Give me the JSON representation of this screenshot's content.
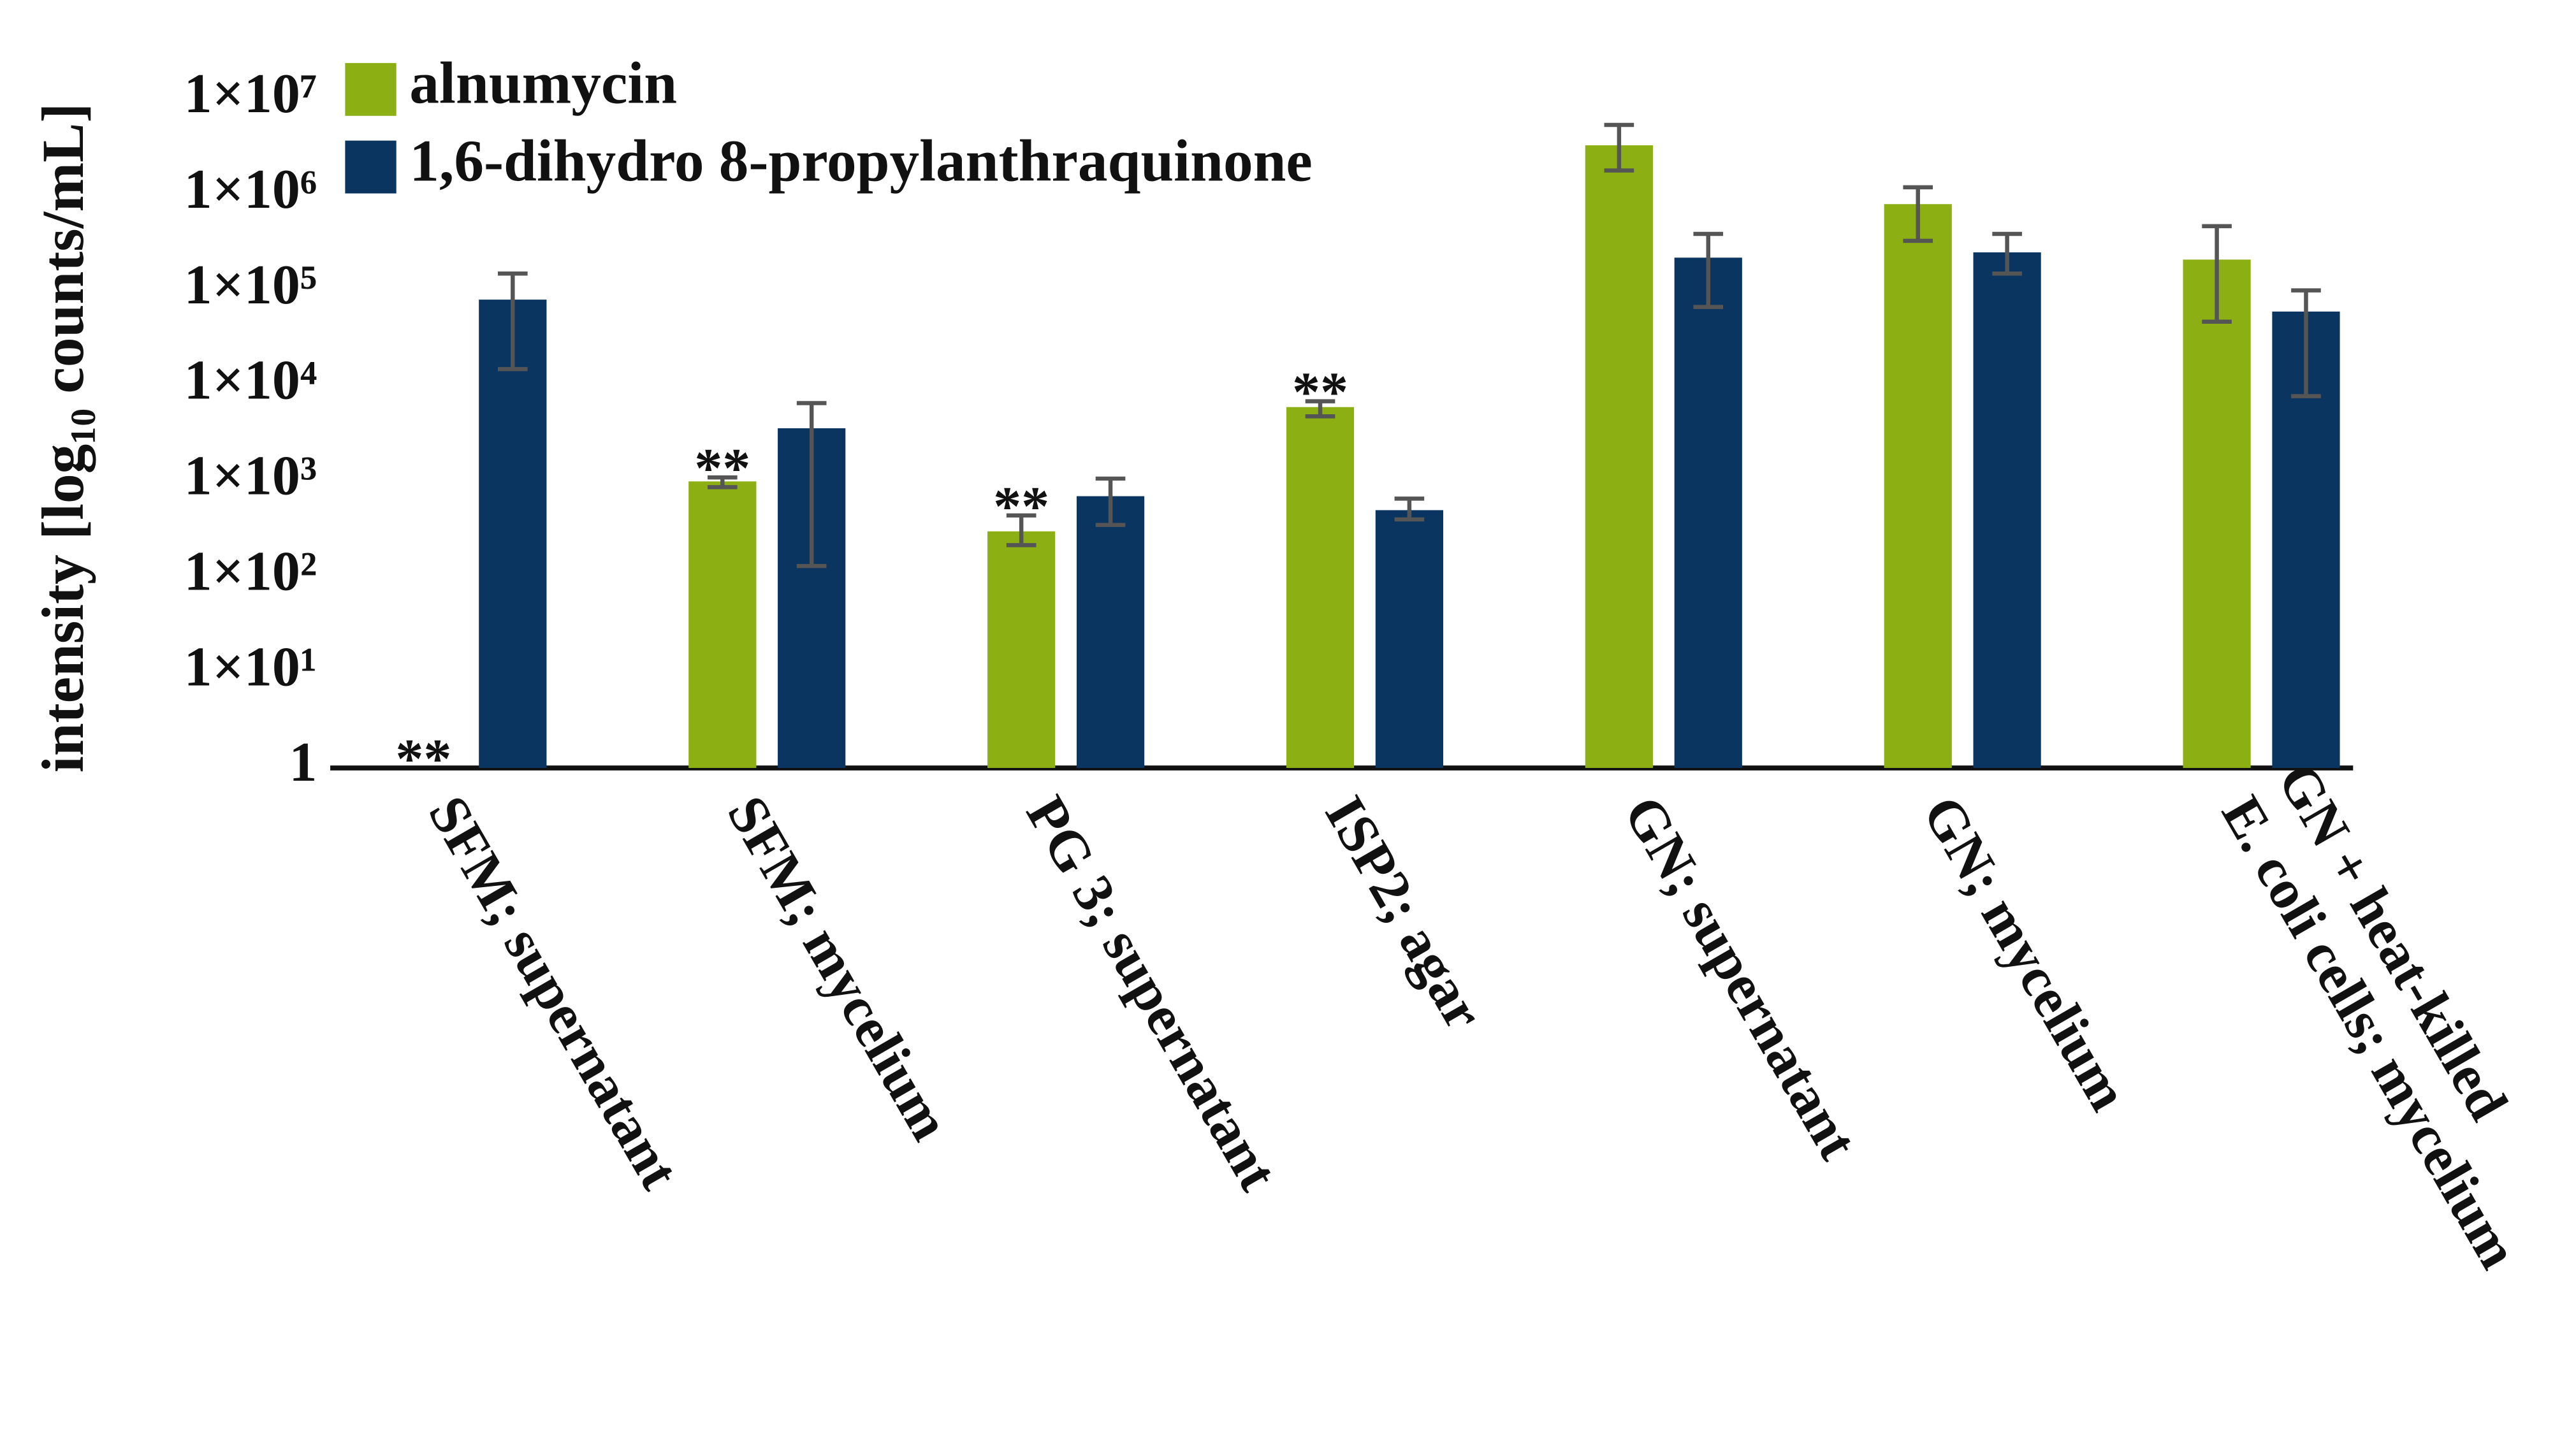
{
  "chart_data": {
    "type": "bar",
    "y_label": "intensity [log₁₀ counts/mL]",
    "log_scale": true,
    "ylim": [
      1,
      10000000
    ],
    "yticks": [
      {
        "value": 1,
        "label": "1"
      },
      {
        "value": 10,
        "label": "1×10¹"
      },
      {
        "value": 100,
        "label": "1×10²"
      },
      {
        "value": 1000,
        "label": "1×10³"
      },
      {
        "value": 10000,
        "label": "1×10⁴"
      },
      {
        "value": 100000,
        "label": "1×10⁵"
      },
      {
        "value": 1000000,
        "label": "1×10⁶"
      },
      {
        "value": 10000000,
        "label": "1×10⁷"
      }
    ],
    "categories": [
      [
        "SFM; supernatant"
      ],
      [
        "SFM; mycelium"
      ],
      [
        "PG 3; supernatant"
      ],
      [
        "ISP2; agar"
      ],
      [
        "GN; supernatant"
      ],
      [
        "GN; mycelium"
      ],
      [
        "GN + heat-killed",
        "E. coli cells; mycelium"
      ]
    ],
    "significance": [
      "**",
      "**",
      "**",
      "**",
      null,
      null,
      null
    ],
    "error_color": "#555555",
    "series": [
      {
        "name": "alnumycin",
        "color": "#8cb013",
        "values": [
          null,
          1000,
          300,
          6000,
          3300000,
          800000,
          210000
        ],
        "error_low": [
          null,
          870,
          215,
          4800,
          1800000,
          330000,
          47000
        ],
        "error_high": [
          null,
          1100,
          440,
          6900,
          5400000,
          1200000,
          470000
        ]
      },
      {
        "name": "1,6-dihydro 8-propylanthraquinone",
        "color": "#0a3560",
        "values": [
          80000,
          3600,
          700,
          500,
          220000,
          250000,
          60000
        ],
        "error_low": [
          15000,
          130,
          350,
          400,
          67000,
          150000,
          7800
        ],
        "error_high": [
          150000,
          6600,
          1070,
          660,
          390000,
          390000,
          100000
        ]
      }
    ]
  }
}
